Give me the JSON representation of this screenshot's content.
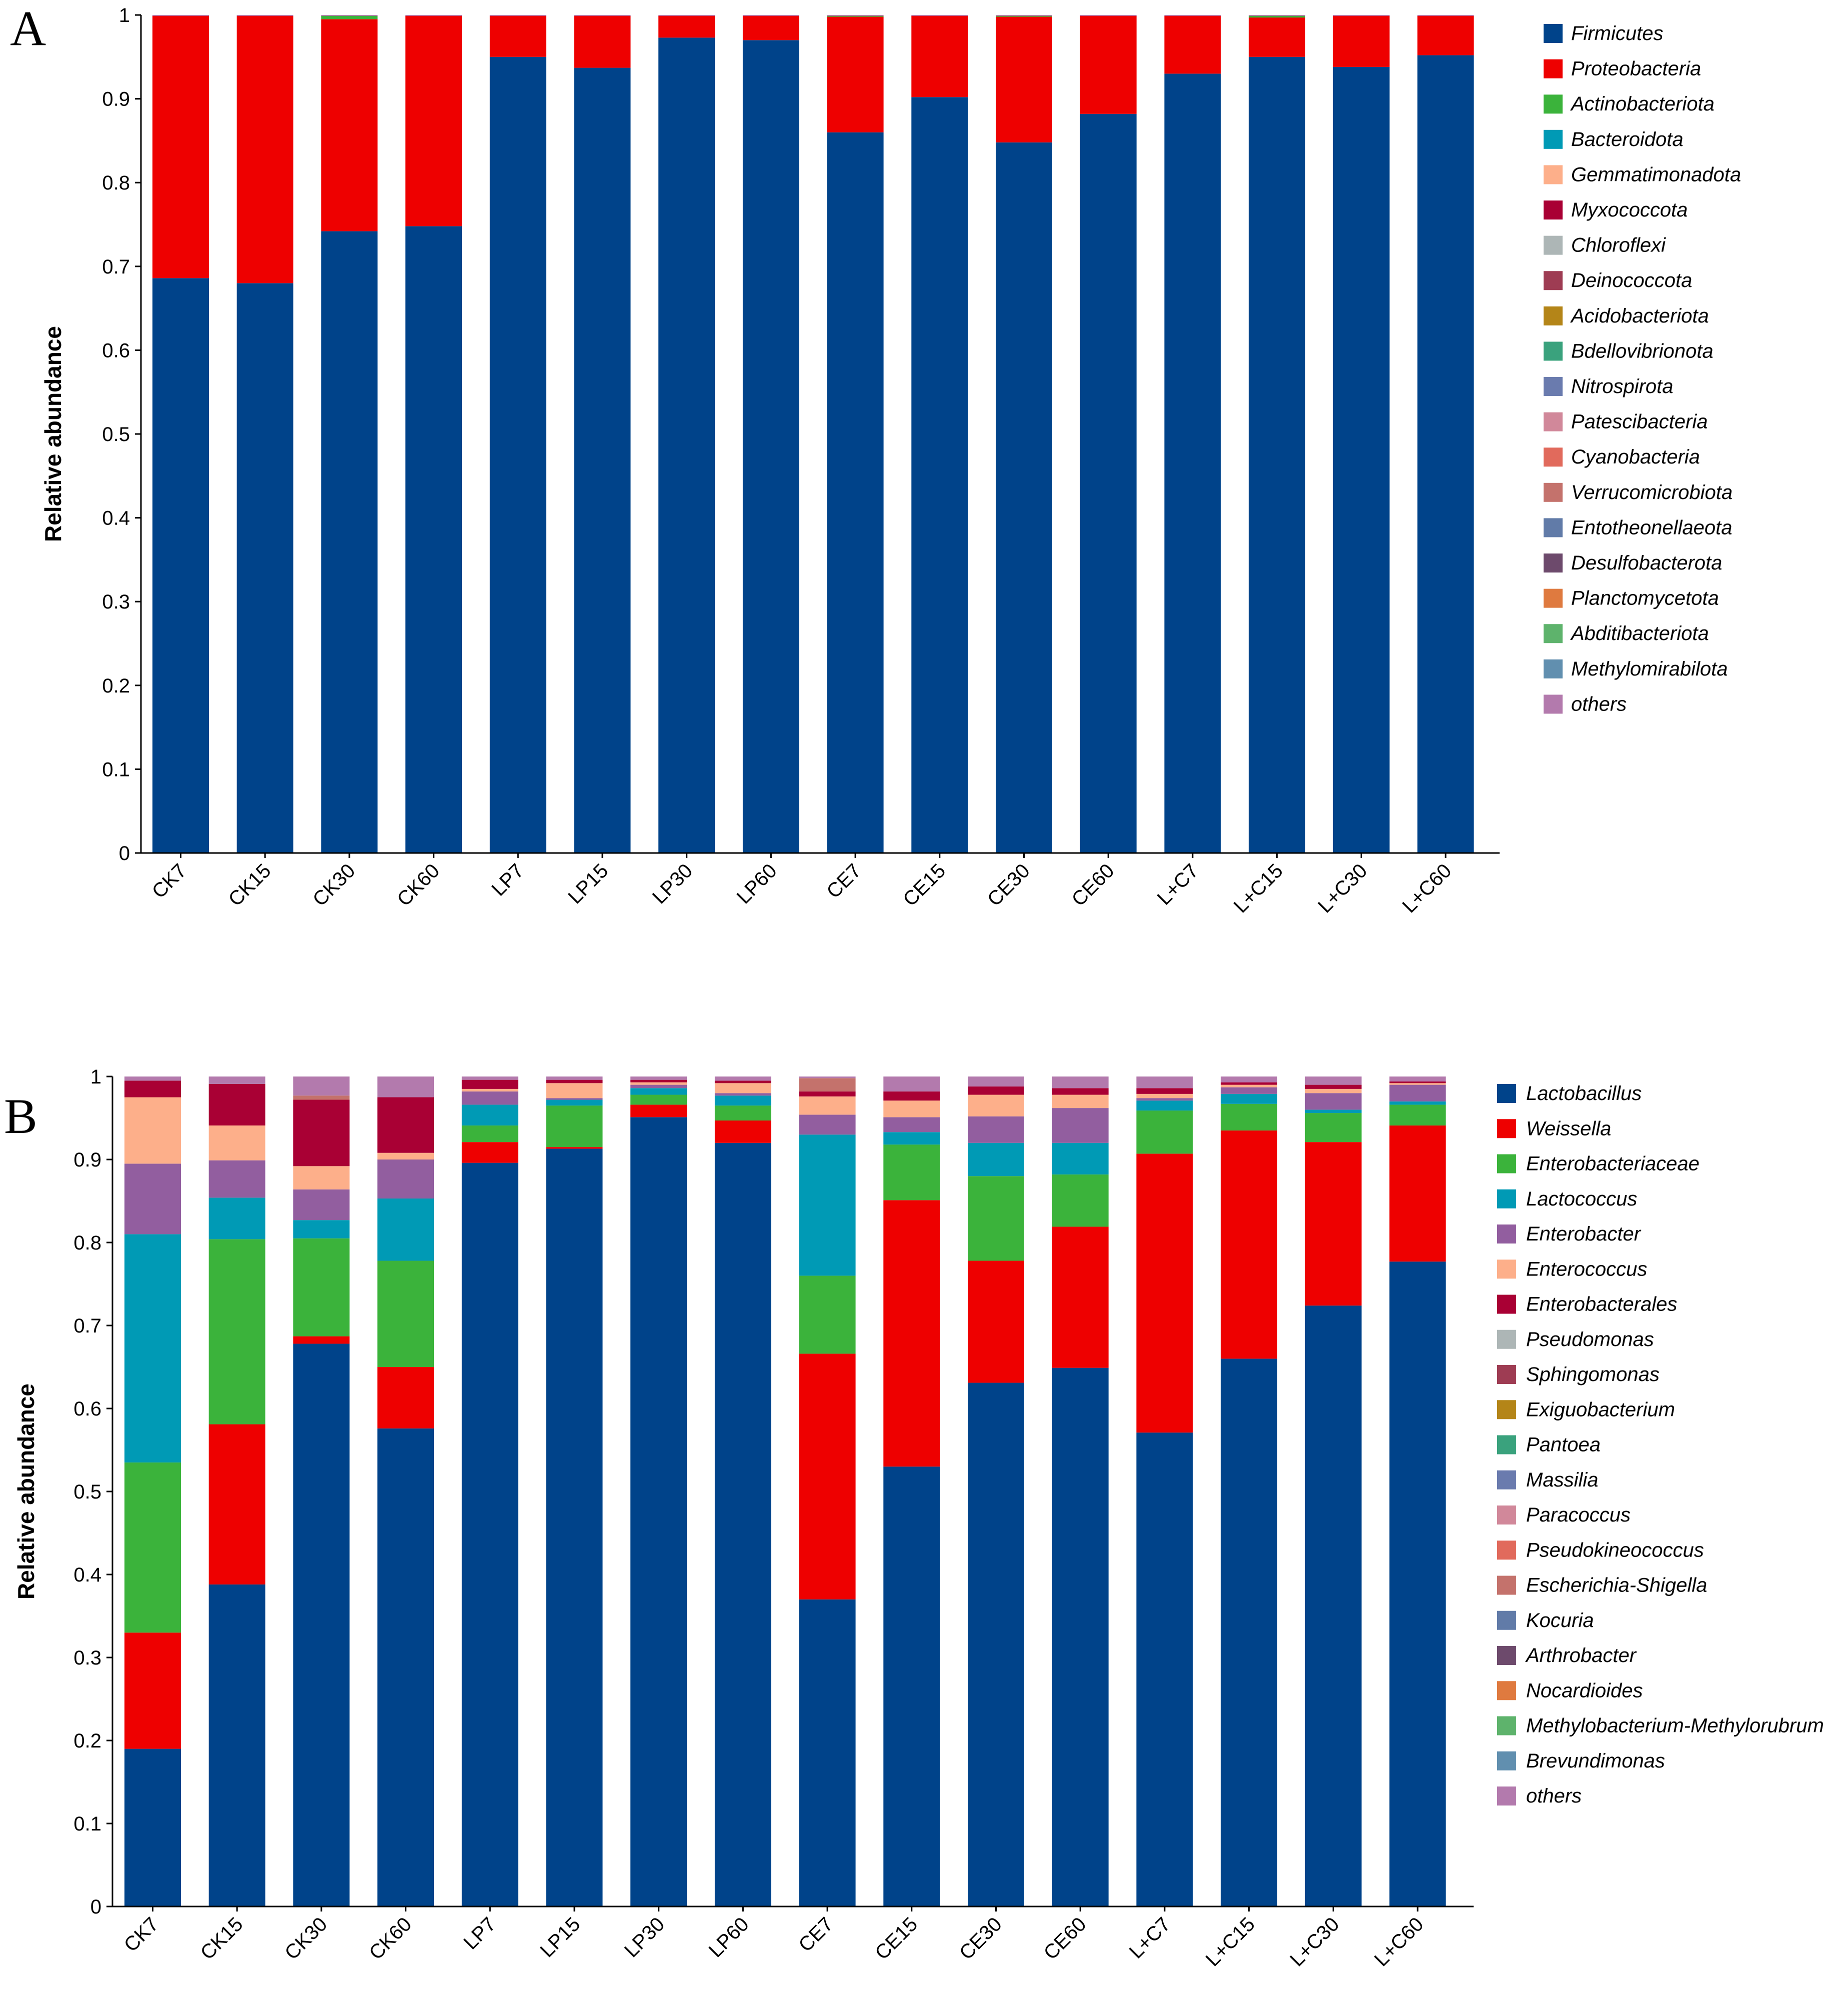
{
  "chart_data": [
    {
      "panel": "A",
      "type": "bar",
      "stacked": true,
      "ylabel": "Relative abundance",
      "ylim": [
        0,
        1
      ],
      "yticks": [
        0,
        0.1,
        0.2,
        0.3,
        0.4,
        0.5,
        0.6,
        0.7,
        0.8,
        0.9,
        1
      ],
      "ytick_labels": [
        "0",
        "0.1",
        "0.2",
        "0.3",
        "0.4",
        "0.5",
        "0.6",
        "0.7",
        "0.8",
        "0.9",
        "1"
      ],
      "categories": [
        "CK7",
        "CK15",
        "CK30",
        "CK60",
        "LP7",
        "LP15",
        "LP30",
        "LP60",
        "CE7",
        "CE15",
        "CE30",
        "CE60",
        "L+C7",
        "L+C15",
        "L+C30",
        "L+C60"
      ],
      "legend": [
        "Firmicutes",
        "Proteobacteria",
        "Actinobacteriota",
        "Bacteroidota",
        "Gemmatimonadota",
        "Myxococcota",
        "Chloroflexi",
        "Deinococcota",
        "Acidobacteriota",
        "Bdellovibrionota",
        "Nitrospirota",
        "Patescibacteria",
        "Cyanobacteria",
        "Verrucomicrobiota",
        "Entotheonellaeota",
        "Desulfobacterota",
        "Planctomycetota",
        "Abditibacteriota",
        "Methylomirabilota",
        "others"
      ],
      "colors": [
        "#00438a",
        "#ee0000",
        "#3bb33b",
        "#009ab5",
        "#fdaf8a",
        "#a90034",
        "#adb6b6",
        "#9e3c53",
        "#b48518",
        "#3aa27d",
        "#6a7bae",
        "#d1889a",
        "#e16a5c",
        "#c4726c",
        "#617ba8",
        "#6d4a6c",
        "#df7a3f",
        "#5eb36c",
        "#618faf",
        "#b37aad"
      ],
      "series": [
        {
          "name": "Firmicutes",
          "values": [
            0.686,
            0.68,
            0.742,
            0.748,
            0.95,
            0.937,
            0.973,
            0.97,
            0.86,
            0.902,
            0.848,
            0.882,
            0.93,
            0.95,
            0.938,
            0.952
          ]
        },
        {
          "name": "Proteobacteria",
          "values": [
            0.313,
            0.319,
            0.253,
            0.251,
            0.049,
            0.062,
            0.026,
            0.029,
            0.138,
            0.097,
            0.15,
            0.117,
            0.069,
            0.047,
            0.061,
            0.047
          ]
        },
        {
          "name": "Actinobacteriota",
          "values": [
            0,
            0,
            0.004,
            0,
            0,
            0,
            0,
            0,
            0.001,
            0,
            0.001,
            0,
            0,
            0.002,
            0,
            0
          ]
        },
        {
          "name": "others",
          "values": [
            0.001,
            0.001,
            0.001,
            0.001,
            0.001,
            0.001,
            0.001,
            0.001,
            0.001,
            0.001,
            0.001,
            0.001,
            0.001,
            0.001,
            0.001,
            0.001
          ]
        }
      ]
    },
    {
      "panel": "B",
      "type": "bar",
      "stacked": true,
      "ylabel": "Relative abundance",
      "ylim": [
        0,
        1
      ],
      "yticks": [
        0,
        0.1,
        0.2,
        0.3,
        0.4,
        0.5,
        0.6,
        0.7,
        0.8,
        0.9,
        1
      ],
      "ytick_labels": [
        "0",
        "0.1",
        "0.2",
        "0.3",
        "0.4",
        "0.5",
        "0.6",
        "0.7",
        "0.8",
        "0.9",
        "1"
      ],
      "categories": [
        "CK7",
        "CK15",
        "CK30",
        "CK60",
        "LP7",
        "LP15",
        "LP30",
        "LP60",
        "CE7",
        "CE15",
        "CE30",
        "CE60",
        "L+C7",
        "L+C15",
        "L+C30",
        "L+C60"
      ],
      "legend": [
        "Lactobacillus",
        "Weissella",
        "Enterobacteriaceae",
        "Lactococcus",
        "Enterobacter",
        "Enterococcus",
        "Enterobacterales",
        "Pseudomonas",
        "Sphingomonas",
        "Exiguobacterium",
        "Pantoea",
        "Massilia",
        "Paracoccus",
        "Pseudokineococcus",
        "Escherichia-Shigella",
        "Kocuria",
        "Arthrobacter",
        "Nocardioides",
        "Methylobacterium-Methylorubrum",
        "Brevundimonas",
        "others"
      ],
      "colors": [
        "#00438a",
        "#ee0000",
        "#3bb33b",
        "#009ab5",
        "#925e9f",
        "#fdaf8a",
        "#a90034",
        "#adb6b6",
        "#9e3c53",
        "#b48518",
        "#3aa27d",
        "#6a7bae",
        "#d1889a",
        "#e16a5c",
        "#c4726c",
        "#617ba8",
        "#6d4a6c",
        "#df7a3f",
        "#5eb36c",
        "#618faf",
        "#b37aad"
      ],
      "series": [
        {
          "name": "Lactobacillus",
          "values": [
            0.19,
            0.388,
            0.678,
            0.576,
            0.896,
            0.913,
            0.951,
            0.92,
            0.37,
            0.53,
            0.631,
            0.649,
            0.571,
            0.66,
            0.724,
            0.777
          ]
        },
        {
          "name": "Weissella",
          "values": [
            0.14,
            0.193,
            0.009,
            0.074,
            0.025,
            0.002,
            0.015,
            0.027,
            0.296,
            0.321,
            0.147,
            0.17,
            0.336,
            0.275,
            0.197,
            0.164
          ]
        },
        {
          "name": "Enterobacteriaceae",
          "values": [
            0.205,
            0.223,
            0.118,
            0.128,
            0.02,
            0.05,
            0.012,
            0.018,
            0.094,
            0.067,
            0.102,
            0.063,
            0.052,
            0.032,
            0.035,
            0.025
          ]
        },
        {
          "name": "Lactococcus",
          "values": [
            0.275,
            0.05,
            0.022,
            0.075,
            0.025,
            0.007,
            0.008,
            0.012,
            0.17,
            0.015,
            0.04,
            0.038,
            0.012,
            0.012,
            0.004,
            0.004
          ]
        },
        {
          "name": "Enterobacter",
          "values": [
            0.085,
            0.045,
            0.037,
            0.047,
            0.016,
            0.002,
            0.004,
            0.003,
            0.024,
            0.018,
            0.032,
            0.042,
            0.003,
            0.008,
            0.02,
            0.02
          ]
        },
        {
          "name": "Enterococcus",
          "values": [
            0.08,
            0.042,
            0.028,
            0.008,
            0.003,
            0.018,
            0.003,
            0.012,
            0.022,
            0.02,
            0.026,
            0.016,
            0.005,
            0.003,
            0.005,
            0.002
          ]
        },
        {
          "name": "Enterobacterales",
          "values": [
            0.02,
            0.05,
            0.08,
            0.067,
            0.011,
            0.004,
            0.003,
            0.003,
            0.006,
            0.011,
            0.01,
            0.008,
            0.007,
            0.003,
            0.005,
            0.002
          ]
        },
        {
          "name": "Escherichia-Shigella",
          "values": [
            0,
            0,
            0.005,
            0,
            0,
            0,
            0,
            0,
            0.016,
            0,
            0,
            0,
            0,
            0,
            0,
            0
          ]
        },
        {
          "name": "others",
          "values": [
            0.005,
            0.009,
            0.023,
            0.025,
            0.004,
            0.004,
            0.004,
            0.005,
            0.002,
            0.018,
            0.012,
            0.014,
            0.014,
            0.007,
            0.01,
            0.006
          ]
        }
      ]
    }
  ]
}
